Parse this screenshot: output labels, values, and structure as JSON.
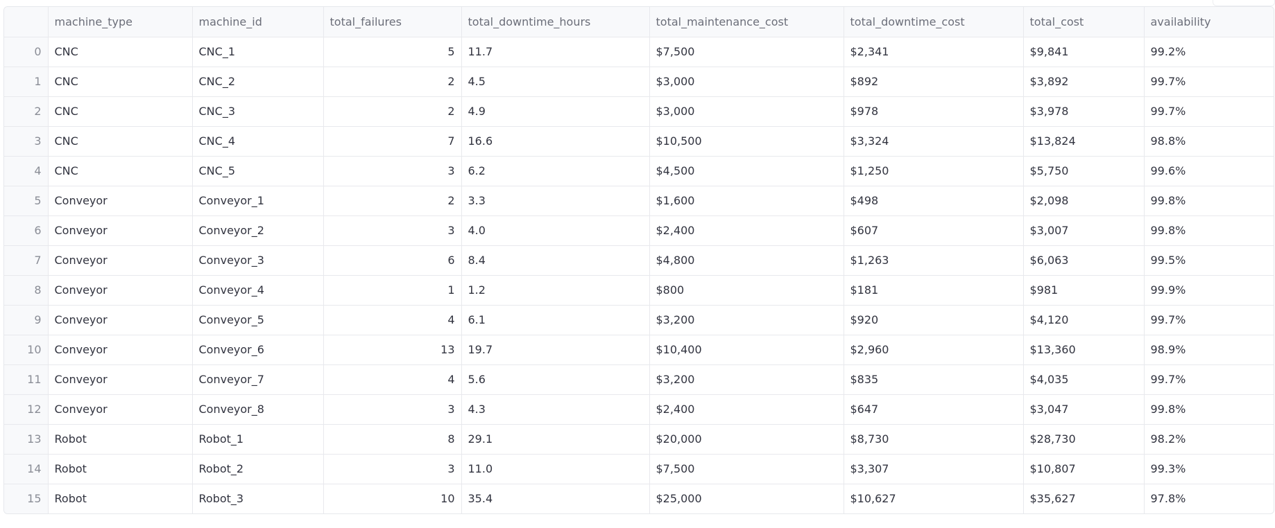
{
  "table": {
    "columns": [
      "",
      "machine_type",
      "machine_id",
      "total_failures",
      "total_downtime_hours",
      "total_maintenance_cost",
      "total_downtime_cost",
      "total_cost",
      "availability"
    ],
    "rows": [
      [
        "0",
        "CNC",
        "CNC_1",
        "5",
        "11.7",
        "$7,500",
        "$2,341",
        "$9,841",
        "99.2%"
      ],
      [
        "1",
        "CNC",
        "CNC_2",
        "2",
        "4.5",
        "$3,000",
        "$892",
        "$3,892",
        "99.7%"
      ],
      [
        "2",
        "CNC",
        "CNC_3",
        "2",
        "4.9",
        "$3,000",
        "$978",
        "$3,978",
        "99.7%"
      ],
      [
        "3",
        "CNC",
        "CNC_4",
        "7",
        "16.6",
        "$10,500",
        "$3,324",
        "$13,824",
        "98.8%"
      ],
      [
        "4",
        "CNC",
        "CNC_5",
        "3",
        "6.2",
        "$4,500",
        "$1,250",
        "$5,750",
        "99.6%"
      ],
      [
        "5",
        "Conveyor",
        "Conveyor_1",
        "2",
        "3.3",
        "$1,600",
        "$498",
        "$2,098",
        "99.8%"
      ],
      [
        "6",
        "Conveyor",
        "Conveyor_2",
        "3",
        "4.0",
        "$2,400",
        "$607",
        "$3,007",
        "99.8%"
      ],
      [
        "7",
        "Conveyor",
        "Conveyor_3",
        "6",
        "8.4",
        "$4,800",
        "$1,263",
        "$6,063",
        "99.5%"
      ],
      [
        "8",
        "Conveyor",
        "Conveyor_4",
        "1",
        "1.2",
        "$800",
        "$181",
        "$981",
        "99.9%"
      ],
      [
        "9",
        "Conveyor",
        "Conveyor_5",
        "4",
        "6.1",
        "$3,200",
        "$920",
        "$4,120",
        "99.7%"
      ],
      [
        "10",
        "Conveyor",
        "Conveyor_6",
        "13",
        "19.7",
        "$10,400",
        "$2,960",
        "$13,360",
        "98.9%"
      ],
      [
        "11",
        "Conveyor",
        "Conveyor_7",
        "4",
        "5.6",
        "$3,200",
        "$835",
        "$4,035",
        "99.7%"
      ],
      [
        "12",
        "Conveyor",
        "Conveyor_8",
        "3",
        "4.3",
        "$2,400",
        "$647",
        "$3,047",
        "99.8%"
      ],
      [
        "13",
        "Robot",
        "Robot_1",
        "8",
        "29.1",
        "$20,000",
        "$8,730",
        "$28,730",
        "98.2%"
      ],
      [
        "14",
        "Robot",
        "Robot_2",
        "3",
        "11.0",
        "$7,500",
        "$3,307",
        "$10,807",
        "99.3%"
      ],
      [
        "15",
        "Robot",
        "Robot_3",
        "10",
        "35.4",
        "$25,000",
        "$10,627",
        "$35,627",
        "97.8%"
      ]
    ]
  }
}
